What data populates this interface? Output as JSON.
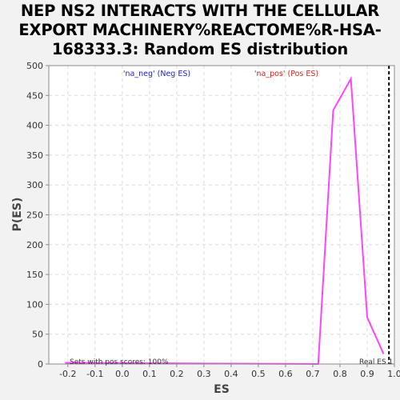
{
  "chart_data": {
    "type": "line",
    "title_lines": [
      "NEP NS2 INTERACTS WITH THE CELLULAR",
      "EXPORT MACHINERY%REACTOME%R-HSA-",
      "168333.3: Random ES distribution"
    ],
    "xlabel": "ES",
    "ylabel": "P(ES)",
    "xlim": [
      -0.27,
      1.0
    ],
    "ylim": [
      0,
      500
    ],
    "xticks": [
      -0.2,
      -0.1,
      0.0,
      0.1,
      0.2,
      0.3,
      0.4,
      0.5,
      0.6,
      0.7,
      0.8,
      0.9,
      1.0
    ],
    "xtick_labels": [
      "-0.2",
      "-0.1",
      "0.0",
      "0.1",
      "0.2",
      "0.3",
      "0.4",
      "0.5",
      "0.6",
      "0.7",
      "0.8",
      "0.9",
      "1.0"
    ],
    "yticks": [
      0,
      50,
      100,
      150,
      200,
      250,
      300,
      350,
      400,
      450,
      500
    ],
    "ytick_labels": [
      "0",
      "50",
      "100",
      "150",
      "200",
      "250",
      "300",
      "350",
      "400",
      "450",
      "500"
    ],
    "grid": true,
    "series": [
      {
        "color": "#ff44ff",
        "x": [
          -0.21,
          0.72,
          0.775,
          0.84,
          0.9,
          0.96
        ],
        "y": [
          2,
          0,
          425,
          478,
          78,
          17
        ]
      }
    ],
    "real_es": 0.98,
    "annotations": {
      "neg_label": "'na_neg' (Neg ES)",
      "pos_label": "'na_pos' (Pos ES)",
      "sets_label": "Sets with pos scores: 100%",
      "real_es_label": "Real ES 1"
    },
    "colors": {
      "neg": "#2222cc",
      "pos": "#dd2222",
      "line": "#ff44ff"
    }
  }
}
